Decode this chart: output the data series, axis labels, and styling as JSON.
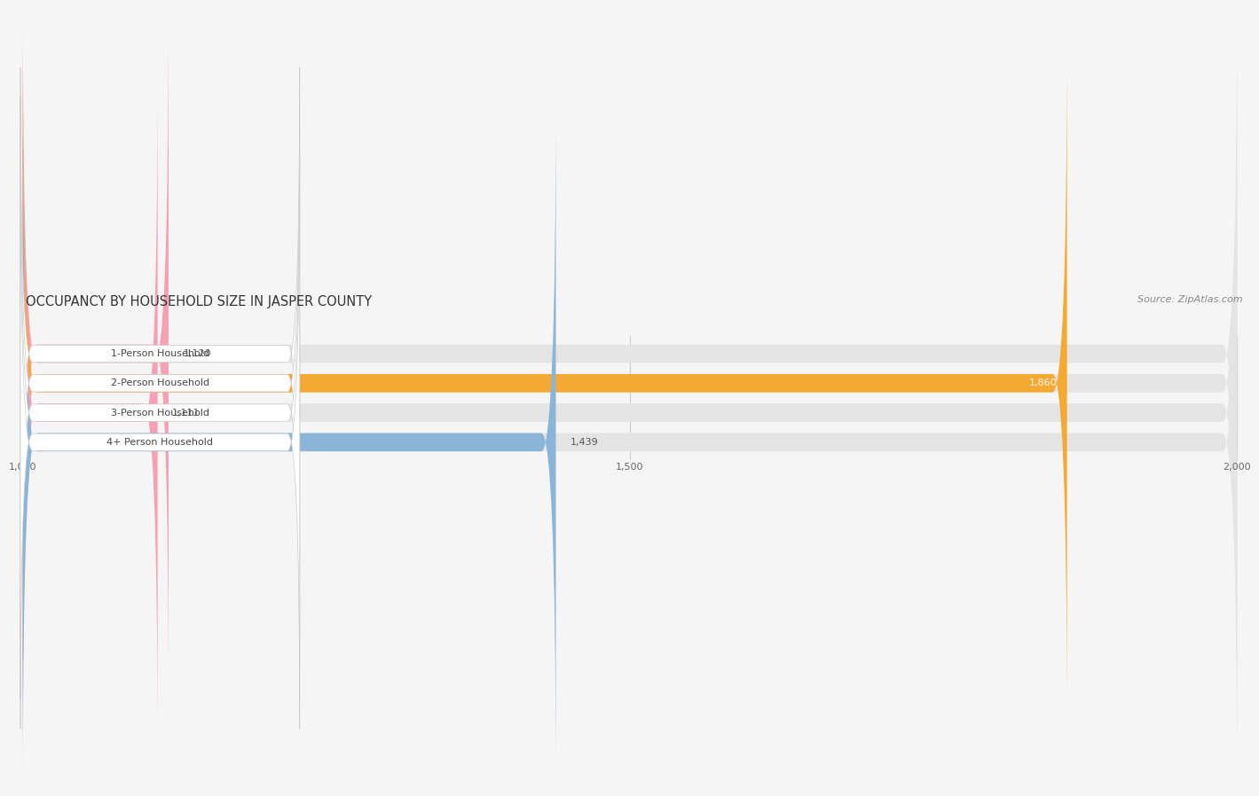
{
  "title": "OCCUPANCY BY HOUSEHOLD SIZE IN JASPER COUNTY",
  "source": "Source: ZipAtlas.com",
  "categories": [
    "1-Person Household",
    "2-Person Household",
    "3-Person Household",
    "4+ Person Household"
  ],
  "values": [
    1120,
    1860,
    1111,
    1439
  ],
  "bar_colors": [
    "#f5a0b5",
    "#f5a832",
    "#f5a0b5",
    "#8ab4d8"
  ],
  "value_inside": [
    false,
    true,
    false,
    false
  ],
  "x_min": 1000,
  "x_max": 2000,
  "x_ticks": [
    1000,
    1500,
    2000
  ],
  "background_color": "#f5f5f5",
  "bar_bg_color": "#e4e4e4",
  "title_fontsize": 10.5,
  "source_fontsize": 8,
  "label_fontsize": 8,
  "value_fontsize": 8,
  "tick_fontsize": 8
}
